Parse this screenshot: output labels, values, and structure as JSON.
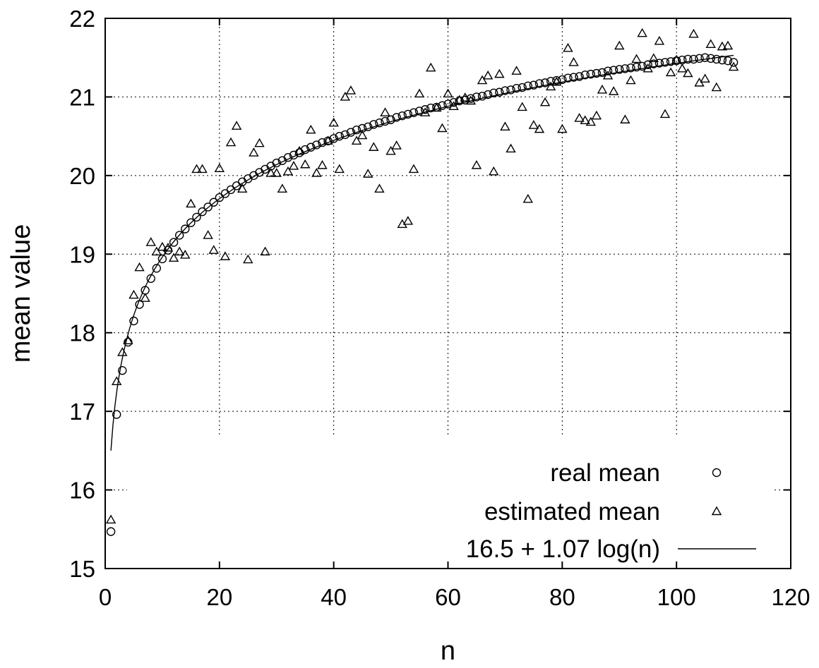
{
  "chart_data": {
    "type": "scatter",
    "title": "",
    "xlabel": "n",
    "ylabel": "mean value",
    "xlim": [
      0,
      120
    ],
    "ylim": [
      15,
      22
    ],
    "xticks": [
      0,
      20,
      40,
      60,
      80,
      100,
      120
    ],
    "yticks": [
      15,
      16,
      17,
      18,
      19,
      20,
      21,
      22
    ],
    "grid": true,
    "legend_position": "bottom-right",
    "series": [
      {
        "name": "real mean",
        "marker": "circle",
        "x": [
          1,
          2,
          3,
          4,
          5,
          6,
          7,
          8,
          9,
          10,
          11,
          12,
          13,
          14,
          15,
          16,
          17,
          18,
          19,
          20,
          21,
          22,
          23,
          24,
          25,
          26,
          27,
          28,
          29,
          30,
          31,
          32,
          33,
          34,
          35,
          36,
          37,
          38,
          39,
          40,
          41,
          42,
          43,
          44,
          45,
          46,
          47,
          48,
          49,
          50,
          51,
          52,
          53,
          54,
          55,
          56,
          57,
          58,
          59,
          60,
          61,
          62,
          63,
          64,
          65,
          66,
          67,
          68,
          69,
          70,
          71,
          72,
          73,
          74,
          75,
          76,
          77,
          78,
          79,
          80,
          81,
          82,
          83,
          84,
          85,
          86,
          87,
          88,
          89,
          90,
          91,
          92,
          93,
          94,
          95,
          96,
          97,
          98,
          99,
          100,
          101,
          102,
          103,
          104,
          105,
          106,
          107,
          108,
          109,
          110
        ],
        "y": [
          15.47,
          16.96,
          17.52,
          17.88,
          18.15,
          18.36,
          18.54,
          18.69,
          18.82,
          18.94,
          19.05,
          19.15,
          19.24,
          19.32,
          19.4,
          19.47,
          19.54,
          19.6,
          19.66,
          19.72,
          19.77,
          19.82,
          19.87,
          19.92,
          19.96,
          20.0,
          20.04,
          20.08,
          20.12,
          20.16,
          20.19,
          20.23,
          20.26,
          20.29,
          20.33,
          20.36,
          20.39,
          20.42,
          20.44,
          20.47,
          20.5,
          20.52,
          20.55,
          20.58,
          20.6,
          20.62,
          20.65,
          20.67,
          20.69,
          20.71,
          20.74,
          20.76,
          20.78,
          20.8,
          20.82,
          20.84,
          20.86,
          20.87,
          20.89,
          20.91,
          20.93,
          20.95,
          20.96,
          20.98,
          21.0,
          21.01,
          21.03,
          21.05,
          21.06,
          21.08,
          21.09,
          21.11,
          21.12,
          21.14,
          21.15,
          21.17,
          21.18,
          21.2,
          21.21,
          21.22,
          21.24,
          21.25,
          21.26,
          21.28,
          21.29,
          21.3,
          21.31,
          21.33,
          21.34,
          21.35,
          21.36,
          21.37,
          21.38,
          21.39,
          21.41,
          21.42,
          21.43,
          21.44,
          21.45,
          21.46,
          21.47,
          21.48,
          21.48,
          21.49,
          21.5,
          21.49,
          21.48,
          21.47,
          21.46,
          21.44
        ]
      },
      {
        "name": "estimated mean",
        "marker": "triangle",
        "x": [
          1,
          2,
          3,
          4,
          5,
          6,
          7,
          8,
          9,
          10,
          11,
          12,
          13,
          14,
          15,
          16,
          17,
          18,
          19,
          20,
          21,
          22,
          23,
          24,
          25,
          26,
          27,
          28,
          29,
          30,
          31,
          32,
          33,
          34,
          35,
          36,
          37,
          38,
          39,
          40,
          41,
          42,
          43,
          44,
          45,
          46,
          47,
          48,
          49,
          50,
          51,
          52,
          53,
          54,
          55,
          56,
          57,
          58,
          59,
          60,
          61,
          62,
          63,
          64,
          65,
          66,
          67,
          68,
          69,
          70,
          71,
          72,
          73,
          74,
          75,
          76,
          77,
          78,
          79,
          80,
          81,
          82,
          83,
          84,
          85,
          86,
          87,
          88,
          89,
          90,
          91,
          92,
          93,
          94,
          95,
          96,
          97,
          98,
          99,
          100,
          101,
          102,
          103,
          104,
          105,
          106,
          107,
          108,
          109,
          110
        ],
        "y": [
          15.62,
          17.38,
          17.75,
          17.9,
          18.48,
          18.83,
          18.44,
          19.15,
          19.03,
          19.09,
          19.08,
          18.95,
          19.03,
          18.99,
          19.64,
          20.08,
          20.08,
          19.24,
          19.05,
          20.09,
          18.97,
          20.42,
          20.63,
          19.83,
          18.93,
          20.29,
          20.41,
          19.03,
          20.03,
          20.03,
          19.83,
          20.05,
          20.12,
          20.31,
          20.14,
          20.58,
          20.03,
          20.13,
          20.44,
          20.67,
          20.08,
          21.0,
          21.08,
          20.44,
          20.51,
          20.02,
          20.36,
          19.83,
          20.8,
          20.31,
          20.38,
          19.38,
          19.42,
          20.08,
          21.04,
          20.8,
          21.37,
          20.86,
          20.6,
          21.04,
          20.88,
          20.96,
          20.99,
          20.95,
          20.13,
          21.21,
          21.27,
          20.05,
          21.29,
          20.62,
          20.34,
          21.33,
          20.87,
          19.7,
          20.64,
          20.59,
          20.93,
          21.13,
          21.19,
          20.59,
          21.62,
          21.44,
          20.73,
          20.7,
          20.68,
          20.76,
          21.09,
          21.27,
          21.07,
          21.65,
          20.71,
          21.21,
          21.48,
          21.81,
          21.36,
          21.49,
          21.71,
          20.78,
          21.31,
          21.47,
          21.36,
          21.3,
          21.8,
          21.18,
          21.23,
          21.67,
          21.12,
          21.64,
          21.65,
          21.38
        ]
      },
      {
        "name": "16.5 + 1.07 log(n)",
        "marker": "line",
        "formula": {
          "a": 16.5,
          "b": 1.07,
          "base": "e"
        },
        "x_range": [
          1,
          110
        ]
      }
    ]
  }
}
